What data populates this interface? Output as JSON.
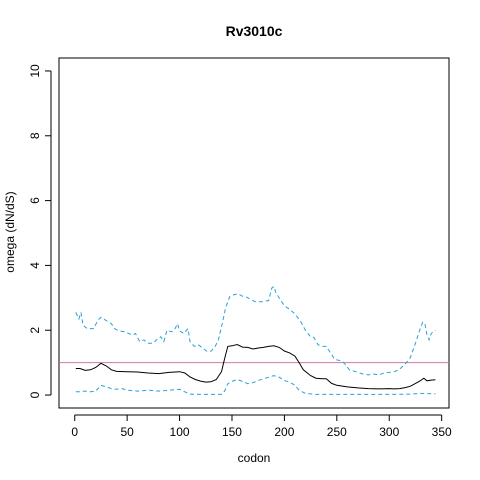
{
  "chart_data": {
    "type": "line",
    "title": "Rv3010c",
    "xlabel": "codon",
    "ylabel": "omega (dN/dS)",
    "xlim": [
      -15,
      357
    ],
    "ylim": [
      -0.4,
      10.4
    ],
    "xticks": [
      0,
      50,
      100,
      150,
      200,
      250,
      300,
      350
    ],
    "yticks": [
      0,
      2,
      4,
      6,
      8,
      10
    ],
    "grid": false,
    "reference_line": {
      "y": 1,
      "color": "#cc79a7"
    },
    "series": [
      {
        "role": "estimate",
        "color": "#000000",
        "style": "solid",
        "points": [
          [
            1,
            0.82
          ],
          [
            5,
            0.82
          ],
          [
            10,
            0.76
          ],
          [
            15,
            0.78
          ],
          [
            20,
            0.85
          ],
          [
            25,
            0.98
          ],
          [
            30,
            0.9
          ],
          [
            35,
            0.78
          ],
          [
            40,
            0.73
          ],
          [
            50,
            0.72
          ],
          [
            60,
            0.71
          ],
          [
            70,
            0.68
          ],
          [
            80,
            0.66
          ],
          [
            90,
            0.7
          ],
          [
            100,
            0.72
          ],
          [
            105,
            0.68
          ],
          [
            110,
            0.56
          ],
          [
            115,
            0.48
          ],
          [
            120,
            0.43
          ],
          [
            125,
            0.4
          ],
          [
            130,
            0.41
          ],
          [
            135,
            0.48
          ],
          [
            140,
            0.72
          ],
          [
            143,
            1.12
          ],
          [
            146,
            1.5
          ],
          [
            150,
            1.52
          ],
          [
            155,
            1.56
          ],
          [
            160,
            1.48
          ],
          [
            165,
            1.47
          ],
          [
            170,
            1.42
          ],
          [
            175,
            1.45
          ],
          [
            180,
            1.47
          ],
          [
            185,
            1.5
          ],
          [
            190,
            1.52
          ],
          [
            195,
            1.47
          ],
          [
            200,
            1.36
          ],
          [
            205,
            1.3
          ],
          [
            210,
            1.2
          ],
          [
            214,
            1.0
          ],
          [
            218,
            0.78
          ],
          [
            225,
            0.6
          ],
          [
            230,
            0.52
          ],
          [
            236,
            0.5
          ],
          [
            240,
            0.5
          ],
          [
            245,
            0.36
          ],
          [
            250,
            0.3
          ],
          [
            260,
            0.25
          ],
          [
            270,
            0.22
          ],
          [
            280,
            0.2
          ],
          [
            290,
            0.19
          ],
          [
            300,
            0.2
          ],
          [
            305,
            0.19
          ],
          [
            310,
            0.2
          ],
          [
            315,
            0.23
          ],
          [
            320,
            0.27
          ],
          [
            325,
            0.36
          ],
          [
            330,
            0.45
          ],
          [
            333,
            0.52
          ],
          [
            336,
            0.44
          ],
          [
            340,
            0.46
          ],
          [
            344,
            0.47
          ]
        ]
      },
      {
        "role": "upper-bound",
        "color": "#2aa1d8",
        "style": "dashed",
        "points": [
          [
            1,
            2.55
          ],
          [
            4,
            2.35
          ],
          [
            6,
            2.55
          ],
          [
            8,
            2.15
          ],
          [
            12,
            2.05
          ],
          [
            18,
            2.05
          ],
          [
            22,
            2.3
          ],
          [
            25,
            2.4
          ],
          [
            30,
            2.3
          ],
          [
            35,
            2.2
          ],
          [
            38,
            2.05
          ],
          [
            42,
            1.98
          ],
          [
            48,
            1.95
          ],
          [
            55,
            1.85
          ],
          [
            58,
            1.9
          ],
          [
            62,
            1.65
          ],
          [
            66,
            1.7
          ],
          [
            70,
            1.6
          ],
          [
            75,
            1.6
          ],
          [
            78,
            1.7
          ],
          [
            82,
            1.8
          ],
          [
            85,
            1.65
          ],
          [
            88,
            2.0
          ],
          [
            92,
            1.95
          ],
          [
            95,
            2.0
          ],
          [
            98,
            2.2
          ],
          [
            100,
            1.98
          ],
          [
            104,
            1.9
          ],
          [
            108,
            2.05
          ],
          [
            110,
            1.65
          ],
          [
            114,
            1.5
          ],
          [
            118,
            1.55
          ],
          [
            122,
            1.45
          ],
          [
            126,
            1.35
          ],
          [
            130,
            1.35
          ],
          [
            134,
            1.5
          ],
          [
            137,
            1.7
          ],
          [
            140,
            2.1
          ],
          [
            144,
            2.7
          ],
          [
            148,
            3.05
          ],
          [
            152,
            3.1
          ],
          [
            156,
            3.12
          ],
          [
            160,
            3.05
          ],
          [
            164,
            3.02
          ],
          [
            168,
            2.95
          ],
          [
            172,
            2.88
          ],
          [
            180,
            2.88
          ],
          [
            185,
            2.92
          ],
          [
            188,
            3.3
          ],
          [
            190,
            3.35
          ],
          [
            192,
            3.15
          ],
          [
            196,
            2.95
          ],
          [
            200,
            2.75
          ],
          [
            205,
            2.65
          ],
          [
            210,
            2.5
          ],
          [
            215,
            2.3
          ],
          [
            220,
            2.0
          ],
          [
            225,
            1.8
          ],
          [
            228,
            1.78
          ],
          [
            232,
            1.55
          ],
          [
            237,
            1.5
          ],
          [
            240,
            1.5
          ],
          [
            244,
            1.3
          ],
          [
            248,
            1.1
          ],
          [
            255,
            1.05
          ],
          [
            258,
            0.95
          ],
          [
            262,
            0.78
          ],
          [
            268,
            0.72
          ],
          [
            275,
            0.65
          ],
          [
            280,
            0.62
          ],
          [
            285,
            0.65
          ],
          [
            290,
            0.62
          ],
          [
            295,
            0.68
          ],
          [
            300,
            0.7
          ],
          [
            305,
            0.72
          ],
          [
            310,
            0.8
          ],
          [
            315,
            0.95
          ],
          [
            320,
            1.15
          ],
          [
            324,
            1.5
          ],
          [
            328,
            1.9
          ],
          [
            330,
            2.1
          ],
          [
            332,
            2.25
          ],
          [
            334,
            2.2
          ],
          [
            336,
            1.85
          ],
          [
            338,
            1.7
          ],
          [
            340,
            1.9
          ],
          [
            344,
            2.0
          ]
        ]
      },
      {
        "role": "lower-bound",
        "color": "#2aa1d8",
        "style": "dashed",
        "points": [
          [
            1,
            0.1
          ],
          [
            5,
            0.1
          ],
          [
            10,
            0.12
          ],
          [
            15,
            0.1
          ],
          [
            20,
            0.12
          ],
          [
            25,
            0.3
          ],
          [
            30,
            0.25
          ],
          [
            35,
            0.2
          ],
          [
            40,
            0.18
          ],
          [
            45,
            0.2
          ],
          [
            50,
            0.15
          ],
          [
            60,
            0.12
          ],
          [
            70,
            0.15
          ],
          [
            80,
            0.12
          ],
          [
            90,
            0.15
          ],
          [
            100,
            0.18
          ],
          [
            105,
            0.1
          ],
          [
            110,
            0.03
          ],
          [
            120,
            0.02
          ],
          [
            130,
            0.02
          ],
          [
            140,
            0.02
          ],
          [
            143,
            0.12
          ],
          [
            146,
            0.35
          ],
          [
            150,
            0.42
          ],
          [
            155,
            0.48
          ],
          [
            160,
            0.42
          ],
          [
            165,
            0.35
          ],
          [
            170,
            0.38
          ],
          [
            175,
            0.45
          ],
          [
            180,
            0.5
          ],
          [
            185,
            0.55
          ],
          [
            190,
            0.6
          ],
          [
            195,
            0.55
          ],
          [
            200,
            0.45
          ],
          [
            205,
            0.4
          ],
          [
            210,
            0.3
          ],
          [
            214,
            0.15
          ],
          [
            220,
            0.05
          ],
          [
            230,
            0.02
          ],
          [
            250,
            0.02
          ],
          [
            280,
            0.02
          ],
          [
            300,
            0.02
          ],
          [
            320,
            0.03
          ],
          [
            330,
            0.05
          ],
          [
            340,
            0.04
          ],
          [
            344,
            0.04
          ]
        ]
      }
    ]
  }
}
